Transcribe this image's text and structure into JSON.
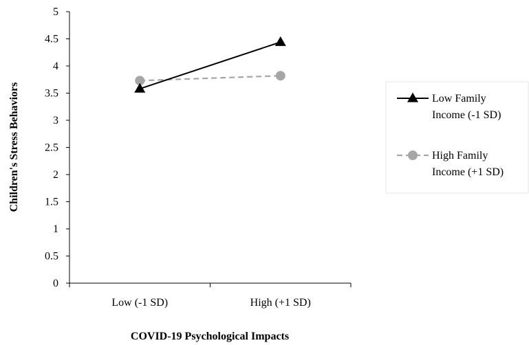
{
  "chart_data": {
    "type": "line",
    "categories": [
      "Low (-1 SD)",
      "High (+1 SD)"
    ],
    "xlabel": "COVID-19 Psychological Impacts",
    "ylabel": "Children's Stress Behaviors",
    "ylim": [
      0,
      5
    ],
    "yticks": [
      "0",
      "0.5",
      "1",
      "1.5",
      "2",
      "2.5",
      "3",
      "3.5",
      "4",
      "4.5",
      "5"
    ],
    "grid": false,
    "legend_position": "right",
    "series": [
      {
        "name": "Low Family Income (-1 SD)",
        "name_lines": [
          "Low Family",
          "Income (-1 SD)"
        ],
        "values": [
          3.58,
          4.44
        ],
        "color": "#000000",
        "line_style": "solid",
        "marker": "triangle"
      },
      {
        "name": "High Family Income (+1 SD)",
        "name_lines": [
          "High Family",
          "Income (+1 SD)"
        ],
        "values": [
          3.73,
          3.82
        ],
        "color": "#a6a6a6",
        "line_style": "dashed",
        "marker": "circle"
      }
    ]
  }
}
